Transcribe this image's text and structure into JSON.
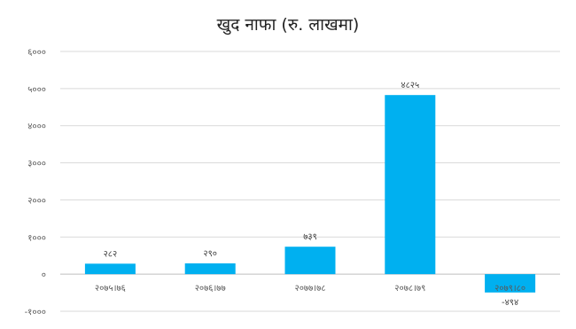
{
  "chart_data": {
    "type": "bar",
    "title": "खुद नाफा (रु. लाखमा)",
    "xlabel": "",
    "ylabel": "",
    "categories": [
      "२०७५।७६",
      "२०७६।७७",
      "२०७७।७८",
      "२०७८।७९",
      "२०७९।८०"
    ],
    "values": [
      282,
      290,
      739,
      4825,
      -494
    ],
    "value_labels": [
      "२८२",
      "२९०",
      "७३९",
      "४८२५",
      "-४९४"
    ],
    "ylim": [
      -1000,
      6000
    ],
    "yticks": [
      6000,
      5000,
      4000,
      3000,
      2000,
      1000,
      0,
      -1000
    ],
    "ytick_labels": [
      "६०००",
      "५०००",
      "४०००",
      "३०००",
      "२०००",
      "१०००",
      "०",
      "-१०००"
    ],
    "grid": true,
    "legend": "none",
    "bar_color": "#00B0F0"
  }
}
